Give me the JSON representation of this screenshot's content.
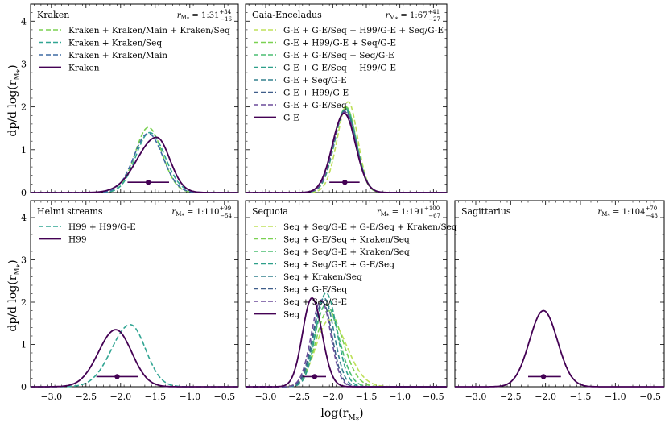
{
  "figure": {
    "ylabel": "dp/d log(r_{M*})",
    "xlabel": "log(r_{M*})",
    "ratio_prefix": "r",
    "ratio_sub": "M*",
    "ratio_sub_display": "M⁎",
    "colors": {
      "dark": "#440154",
      "shades": [
        "#3b0f70",
        "#44397a",
        "#3f5d8a",
        "#33808d",
        "#2d9f89",
        "#4bbd72",
        "#88d254",
        "#bfe05a"
      ]
    }
  },
  "chart_data": [
    {
      "type": "line",
      "title": "Kraken",
      "ratio": {
        "text": "1:31",
        "sup": "+34",
        "sub": "−16"
      },
      "xlim": [
        -3.3,
        -0.3
      ],
      "ylim": [
        0,
        4.4
      ],
      "xticks": [
        "−3.0",
        "−2.5",
        "−2.0",
        "−1.5",
        "−1.0",
        "−0.5"
      ],
      "yticks": [
        "0",
        "1",
        "2",
        "3",
        "4"
      ],
      "legend": "top-left",
      "median": -1.6,
      "interval": [
        -1.9,
        -1.3
      ],
      "series": [
        {
          "name": "Kraken + Kraken/Main + Kraken/Seq",
          "style": "dashed",
          "color": "#7ad151",
          "peak": 1.52,
          "mu": -1.6,
          "sl": 0.19,
          "sr": 0.2
        },
        {
          "name": "Kraken + Kraken/Seq",
          "style": "dashed",
          "color": "#31a593",
          "peak": 1.4,
          "mu": -1.58,
          "sl": 0.2,
          "sr": 0.22
        },
        {
          "name": "Kraken + Kraken/Main",
          "style": "dashed",
          "color": "#3e6ba3",
          "peak": 1.38,
          "mu": -1.6,
          "sl": 0.21,
          "sr": 0.21
        },
        {
          "name": "Kraken",
          "style": "solid",
          "color": "#440154",
          "peak": 1.29,
          "mu": -1.48,
          "sl": 0.28,
          "sr": 0.19
        }
      ]
    },
    {
      "type": "line",
      "title": "Gaia-Enceladus",
      "ratio": {
        "text": "1:67",
        "sup": "+41",
        "sub": "−27"
      },
      "xlim": [
        -3.3,
        -0.3
      ],
      "ylim": [
        0,
        4.4
      ],
      "xticks": [
        "−3.0",
        "−2.5",
        "−2.0",
        "−1.5",
        "−1.0",
        "−0.5"
      ],
      "yticks": [
        "0",
        "1",
        "2",
        "3",
        "4"
      ],
      "legend": "top-left",
      "median": -1.82,
      "interval": [
        -2.05,
        -1.6
      ],
      "series": [
        {
          "name": "G-E + G-E/Seq + H99/G-E + Seq/G-E",
          "style": "dashed",
          "color": "#bfe05a",
          "peak": 2.12,
          "mu": -1.77,
          "sl": 0.16,
          "sr": 0.14
        },
        {
          "name": "G-E + H99/G-E + Seq/G-E",
          "style": "dashed",
          "color": "#7ad151",
          "peak": 2.0,
          "mu": -1.8,
          "sl": 0.17,
          "sr": 0.15
        },
        {
          "name": "G-E + G-E/Seq + Seq/G-E",
          "style": "dashed",
          "color": "#4bbd72",
          "peak": 1.97,
          "mu": -1.8,
          "sl": 0.17,
          "sr": 0.155
        },
        {
          "name": "G-E + G-E/Seq + H99/G-E",
          "style": "dashed",
          "color": "#2d9f89",
          "peak": 1.95,
          "mu": -1.81,
          "sl": 0.17,
          "sr": 0.16
        },
        {
          "name": "G-E + Seq/G-E",
          "style": "dashed",
          "color": "#33808d",
          "peak": 1.92,
          "mu": -1.81,
          "sl": 0.17,
          "sr": 0.16
        },
        {
          "name": "G-E + H99/G-E",
          "style": "dashed",
          "color": "#3f5d8a",
          "peak": 1.9,
          "mu": -1.82,
          "sl": 0.17,
          "sr": 0.165
        },
        {
          "name": "G-E + G-E/Seq",
          "style": "dashed",
          "color": "#6b4c9a",
          "peak": 1.88,
          "mu": -1.82,
          "sl": 0.17,
          "sr": 0.165
        },
        {
          "name": "G-E",
          "style": "solid",
          "color": "#440154",
          "peak": 1.85,
          "mu": -1.83,
          "sl": 0.175,
          "sr": 0.17
        }
      ]
    },
    {
      "type": "line",
      "title": "Helmi streams",
      "ratio": {
        "text": "1:110",
        "sup": "+99",
        "sub": "−54"
      },
      "xlim": [
        -3.3,
        -0.3
      ],
      "ylim": [
        0,
        4.4
      ],
      "xticks": [
        "−3.0",
        "−2.5",
        "−2.0",
        "−1.5",
        "−1.0",
        "−0.5"
      ],
      "yticks": [
        "0",
        "1",
        "2",
        "3",
        "4"
      ],
      "legend": "top-left",
      "median": -2.05,
      "interval": [
        -2.35,
        -1.75
      ],
      "series": [
        {
          "name": "H99 + H99/G-E",
          "style": "dashed",
          "color": "#31a593",
          "peak": 1.47,
          "mu": -1.86,
          "sl": 0.27,
          "sr": 0.22
        },
        {
          "name": "H99",
          "style": "solid",
          "color": "#440154",
          "peak": 1.35,
          "mu": -2.07,
          "sl": 0.25,
          "sr": 0.23
        }
      ]
    },
    {
      "type": "line",
      "title": "Sequoia",
      "ratio": {
        "text": "1:191",
        "sup": "+100",
        "sub": "−67"
      },
      "xlim": [
        -3.3,
        -0.3
      ],
      "ylim": [
        0,
        4.4
      ],
      "xticks": [
        "−3.0",
        "−2.5",
        "−2.0",
        "−1.5",
        "−1.0",
        "−0.5"
      ],
      "yticks": [
        "0",
        "1",
        "2",
        "3",
        "4"
      ],
      "legend": "top-left",
      "median": -2.27,
      "interval": [
        -2.45,
        -2.1
      ],
      "series": [
        {
          "name": "Seq + Seq/G-E + G-E/Seq + Kraken/Seq",
          "style": "dashed",
          "color": "#bfe05a",
          "peak": 1.58,
          "mu": -2.05,
          "sl": 0.2,
          "sr": 0.26
        },
        {
          "name": "Seq + G-E/Seq + Kraken/Seq",
          "style": "dashed",
          "color": "#7ad151",
          "peak": 1.8,
          "mu": -2.07,
          "sl": 0.18,
          "sr": 0.22
        },
        {
          "name": "Seq + Seq/G-E + Kraken/Seq",
          "style": "dashed",
          "color": "#4bbd72",
          "peak": 1.95,
          "mu": -2.1,
          "sl": 0.17,
          "sr": 0.19
        },
        {
          "name": "Seq + Seq/G-E + G-E/Seq",
          "style": "dashed",
          "color": "#2d9f89",
          "peak": 2.22,
          "mu": -2.1,
          "sl": 0.15,
          "sr": 0.16
        },
        {
          "name": "Seq + Kraken/Seq",
          "style": "dashed",
          "color": "#33808d",
          "peak": 2.1,
          "mu": -2.13,
          "sl": 0.15,
          "sr": 0.15
        },
        {
          "name": "Seq + G-E/Seq",
          "style": "dashed",
          "color": "#3f5d8a",
          "peak": 2.0,
          "mu": -2.15,
          "sl": 0.15,
          "sr": 0.14
        },
        {
          "name": "Seq + Seq/G-E",
          "style": "dashed",
          "color": "#6b4c9a",
          "peak": 2.05,
          "mu": -2.17,
          "sl": 0.15,
          "sr": 0.14
        },
        {
          "name": "Seq",
          "style": "solid",
          "color": "#440154",
          "peak": 2.1,
          "mu": -2.31,
          "sl": 0.14,
          "sr": 0.15
        }
      ]
    },
    {
      "type": "line",
      "title": "Sagittarius",
      "ratio": {
        "text": "1:104",
        "sup": "+70",
        "sub": "−43"
      },
      "xlim": [
        -3.3,
        -0.3
      ],
      "ylim": [
        0,
        4.4
      ],
      "xticks": [
        "−3.0",
        "−2.5",
        "−2.0",
        "−1.5",
        "−1.0",
        "−0.5"
      ],
      "yticks": [
        "0",
        "1",
        "2",
        "3",
        "4"
      ],
      "legend": "none",
      "median": -2.03,
      "interval": [
        -2.25,
        -1.78
      ],
      "series": [
        {
          "name": "Sagittarius",
          "style": "solid",
          "color": "#440154",
          "peak": 1.8,
          "mu": -2.03,
          "sl": 0.2,
          "sr": 0.2
        }
      ]
    }
  ]
}
